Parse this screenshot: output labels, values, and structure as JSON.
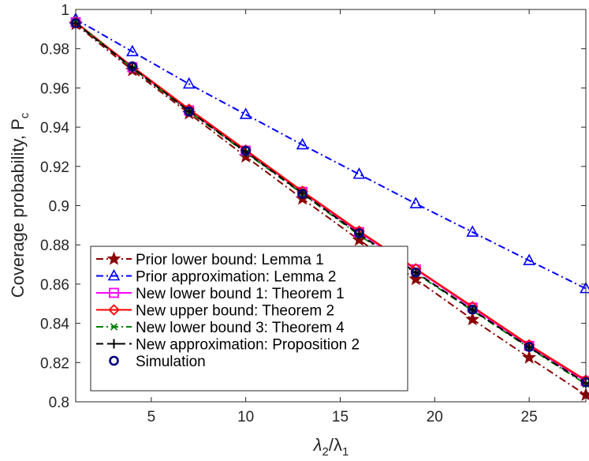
{
  "chart_data": {
    "type": "line",
    "title": "",
    "xlabel": "λ2/λ1",
    "xlabel_main": "λ",
    "xlabel_sub1": "2",
    "xlabel_slash": "/λ",
    "xlabel_sub2": "1",
    "ylabel": "Coverage probability, P",
    "ylabel_sub": "c",
    "xlim": [
      1,
      28
    ],
    "ylim": [
      0.8,
      1.0
    ],
    "xticks": [
      5,
      10,
      15,
      20,
      25
    ],
    "yticks": [
      0.8,
      0.82,
      0.84,
      0.86,
      0.88,
      0.9,
      0.92,
      0.94,
      0.96,
      0.98,
      1
    ],
    "x": [
      1,
      4,
      7,
      10,
      13,
      16,
      19,
      22,
      25,
      28
    ],
    "legend_position": "bottom-left",
    "series": [
      {
        "name": "Prior lower bound: Lemma 1",
        "color": "#8b0000",
        "dash": "dashdot",
        "marker": "star",
        "values": [
          0.9925,
          0.969,
          0.947,
          0.925,
          0.9035,
          0.8825,
          0.8625,
          0.842,
          0.8225,
          0.8035
        ]
      },
      {
        "name": "Prior approximation: Lemma 2",
        "color": "#0000ff",
        "dash": "dashdot",
        "marker": "triangle",
        "values": [
          0.995,
          0.9785,
          0.962,
          0.9465,
          0.931,
          0.916,
          0.901,
          0.8865,
          0.872,
          0.8577
        ]
      },
      {
        "name": "New lower bound 1: Theorem 1",
        "color": "#ff00ff",
        "dash": "solid",
        "marker": "square",
        "values": [
          0.9935,
          0.9705,
          0.9485,
          0.928,
          0.907,
          0.8865,
          0.8675,
          0.848,
          0.8285,
          0.8105
        ]
      },
      {
        "name": "New upper bound: Theorem 2",
        "color": "#ff0000",
        "dash": "solid",
        "marker": "diamond",
        "values": [
          0.9935,
          0.9708,
          0.9492,
          0.9283,
          0.9073,
          0.887,
          0.8678,
          0.8485,
          0.829,
          0.811
        ]
      },
      {
        "name": "New lower bound 3: Theorem 4",
        "color": "#008000",
        "dash": "dashdot",
        "marker": "x",
        "values": [
          0.9935,
          0.97,
          0.948,
          0.927,
          0.906,
          0.885,
          0.8655,
          0.8465,
          0.8275,
          0.809
        ]
      },
      {
        "name": "New approximation: Proposition 2",
        "color": "#000000",
        "dash": "dashed",
        "marker": "plus",
        "values": [
          0.993,
          0.9703,
          0.9482,
          0.9274,
          0.9063,
          0.8855,
          0.866,
          0.8468,
          0.8278,
          0.8095
        ]
      },
      {
        "name": "Simulation",
        "color": "#000080",
        "dash": "none",
        "marker": "circle",
        "values": [
          0.993,
          0.971,
          0.948,
          0.928,
          0.906,
          0.886,
          0.866,
          0.847,
          0.828,
          0.81
        ]
      }
    ]
  }
}
